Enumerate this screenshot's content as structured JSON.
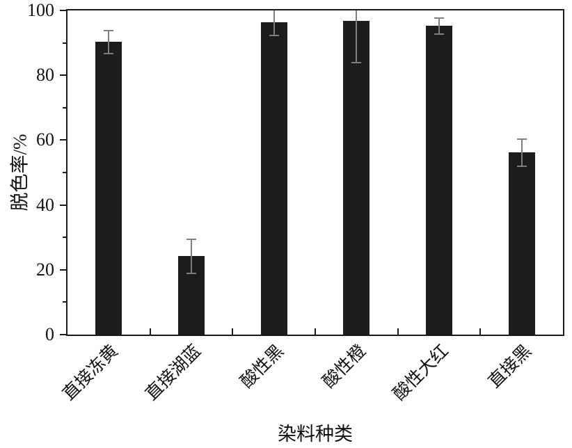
{
  "chart_data": {
    "type": "bar",
    "title": "",
    "xlabel": "染料种类",
    "ylabel": "脱色率/%",
    "categories": [
      "直接冻黄",
      "直接湖蓝",
      "酸性黑",
      "酸性橙",
      "酸性大红",
      "直接黑"
    ],
    "values": [
      90.3,
      24.2,
      96.3,
      96.8,
      95.2,
      56.2
    ],
    "errors": [
      3.5,
      5.3,
      4.0,
      13.0,
      2.5,
      4.2
    ],
    "ylim": [
      0,
      100
    ],
    "yticks": [
      0,
      20,
      40,
      60,
      80,
      100
    ],
    "yminorticks": [
      10,
      30,
      50,
      70,
      90
    ],
    "grid": false,
    "legend": "none",
    "bar_color": "#1c1c1c",
    "error_color": "#7f7f7f",
    "axis_color": "#1a1a1a",
    "text_color": "#111111"
  }
}
